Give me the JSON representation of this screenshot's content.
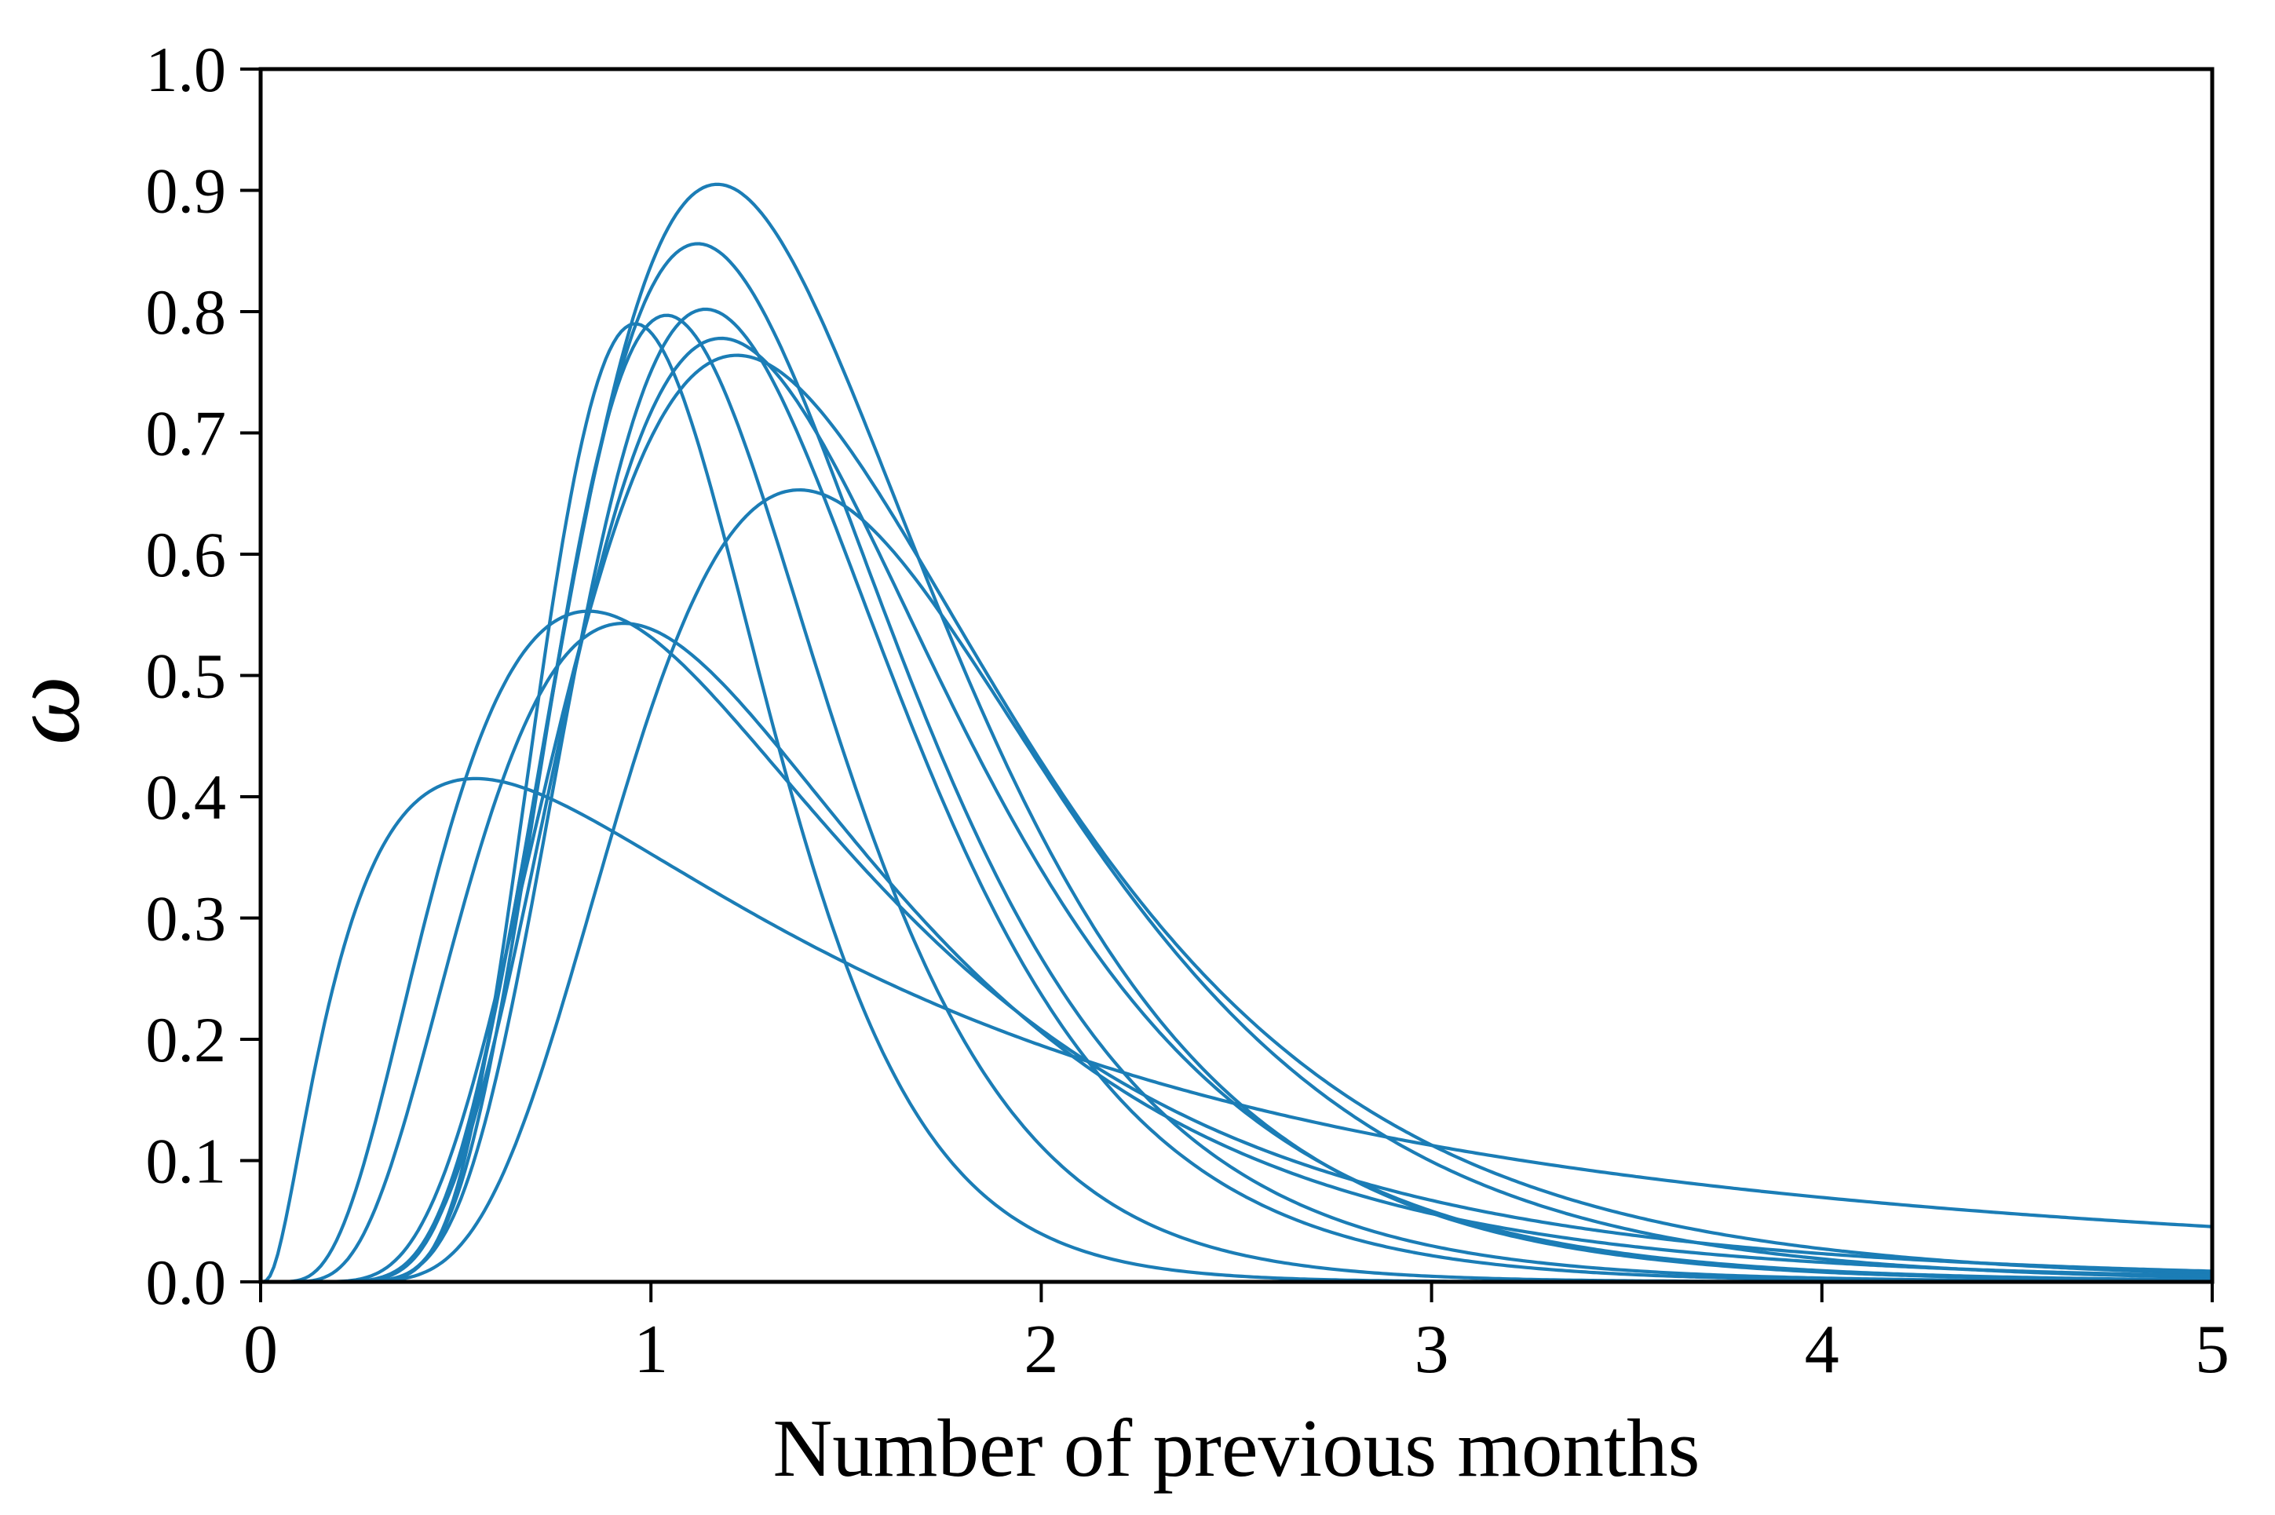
{
  "chart_data": {
    "type": "line",
    "title": "",
    "xlabel": "Number of previous months",
    "ylabel": "ω",
    "xlim": [
      0,
      5
    ],
    "ylim": [
      0.0,
      1.0
    ],
    "x_ticks": [
      "0",
      "1",
      "2",
      "3",
      "4",
      "5"
    ],
    "y_ticks": [
      "0.0",
      "0.1",
      "0.2",
      "0.3",
      "0.4",
      "0.5",
      "0.6",
      "0.7",
      "0.8",
      "0.9",
      "1.0"
    ],
    "grid": false,
    "legend": "none",
    "line_color": "#1b7db6",
    "background_color": "#ffffff",
    "axis_color": "#000000",
    "series_form": "lognormal: y = peak_y * exp(-(ln(x/peak_x))^2 / (2*sigma^2))",
    "series": [
      {
        "name": "curve-01",
        "peak_x": 1.17,
        "peak_y": 0.905,
        "sigma": 0.4,
        "key_points": [
          [
            0.5,
            0.095
          ],
          [
            1.0,
            0.838
          ],
          [
            1.5,
            0.746
          ],
          [
            2.0,
            0.369
          ],
          [
            3.0,
            0.057
          ],
          [
            4.0,
            0.008
          ],
          [
            5.0,
            0.001
          ]
        ]
      },
      {
        "name": "curve-02",
        "peak_x": 1.12,
        "peak_y": 0.856,
        "sigma": 0.38,
        "key_points": [
          [
            0.5,
            0.09
          ],
          [
            1.0,
            0.819
          ],
          [
            1.5,
            0.637
          ],
          [
            2.0,
            0.267
          ],
          [
            3.0,
            0.03
          ],
          [
            4.0,
            0.004
          ],
          [
            5.0,
            0.001
          ]
        ]
      },
      {
        "name": "curve-03",
        "peak_x": 1.14,
        "peak_y": 0.802,
        "sigma": 0.36,
        "key_points": [
          [
            0.5,
            0.058
          ],
          [
            1.0,
            0.751
          ],
          [
            1.5,
            0.6
          ],
          [
            2.0,
            0.237
          ],
          [
            3.0,
            0.022
          ],
          [
            4.0,
            0.003
          ],
          [
            5.0,
            0.0
          ]
        ]
      },
      {
        "name": "curve-04",
        "peak_x": 1.04,
        "peak_y": 0.797,
        "sigma": 0.33,
        "key_points": [
          [
            0.5,
            0.068
          ],
          [
            1.0,
            0.791
          ],
          [
            1.5,
            0.431
          ],
          [
            2.0,
            0.112
          ],
          [
            3.0,
            0.005
          ],
          [
            4.0,
            0.001
          ],
          [
            5.0,
            0.0
          ]
        ]
      },
      {
        "name": "curve-05",
        "peak_x": 0.96,
        "peak_y": 0.79,
        "sigma": 0.3,
        "key_points": [
          [
            0.5,
            0.074
          ],
          [
            1.0,
            0.783
          ],
          [
            1.5,
            0.261
          ],
          [
            2.0,
            0.04
          ],
          [
            3.0,
            0.001
          ],
          [
            4.0,
            0.0
          ],
          [
            5.0,
            0.0
          ]
        ]
      },
      {
        "name": "curve-06",
        "peak_x": 1.18,
        "peak_y": 0.778,
        "sigma": 0.41,
        "key_points": [
          [
            0.5,
            0.087
          ],
          [
            1.0,
            0.717
          ],
          [
            1.5,
            0.656
          ],
          [
            2.0,
            0.34
          ],
          [
            3.0,
            0.058
          ],
          [
            4.0,
            0.01
          ],
          [
            5.0,
            0.002
          ]
        ]
      },
      {
        "name": "curve-07",
        "peak_x": 1.22,
        "peak_y": 0.764,
        "sigma": 0.46,
        "key_points": [
          [
            0.5,
            0.117
          ],
          [
            1.0,
            0.696
          ],
          [
            1.5,
            0.691
          ],
          [
            2.0,
            0.429
          ],
          [
            3.0,
            0.113
          ],
          [
            4.0,
            0.027
          ],
          [
            5.0,
            0.007
          ]
        ]
      },
      {
        "name": "curve-08",
        "peak_x": 1.38,
        "peak_y": 0.653,
        "sigma": 0.4,
        "key_points": [
          [
            0.5,
            0.026
          ],
          [
            1.0,
            0.472
          ],
          [
            1.5,
            0.639
          ],
          [
            2.0,
            0.425
          ],
          [
            3.0,
            0.099
          ],
          [
            4.0,
            0.019
          ],
          [
            5.0,
            0.004
          ]
        ]
      },
      {
        "name": "curve-09",
        "peak_x": 0.84,
        "peak_y": 0.553,
        "sigma": 0.62,
        "key_points": [
          [
            0.5,
            0.39
          ],
          [
            1.0,
            0.532
          ],
          [
            1.5,
            0.357
          ],
          [
            2.0,
            0.208
          ],
          [
            3.0,
            0.067
          ],
          [
            4.0,
            0.023
          ],
          [
            5.0,
            0.009
          ]
        ]
      },
      {
        "name": "curve-10",
        "peak_x": 0.93,
        "peak_y": 0.543,
        "sigma": 0.55,
        "key_points": [
          [
            0.5,
            0.287
          ],
          [
            1.0,
            0.538
          ],
          [
            1.5,
            0.372
          ],
          [
            2.0,
            0.206
          ],
          [
            3.0,
            0.056
          ],
          [
            4.0,
            0.016
          ],
          [
            5.0,
            0.005
          ]
        ]
      },
      {
        "name": "curve-11",
        "peak_x": 0.55,
        "peak_y": 0.415,
        "sigma": 1.05,
        "key_points": [
          [
            0.25,
            0.313
          ],
          [
            0.5,
            0.413
          ],
          [
            1.0,
            0.353
          ],
          [
            1.5,
            0.263
          ],
          [
            2.0,
            0.195
          ],
          [
            3.0,
            0.113
          ],
          [
            4.0,
            0.07
          ],
          [
            5.0,
            0.046
          ]
        ]
      }
    ]
  }
}
